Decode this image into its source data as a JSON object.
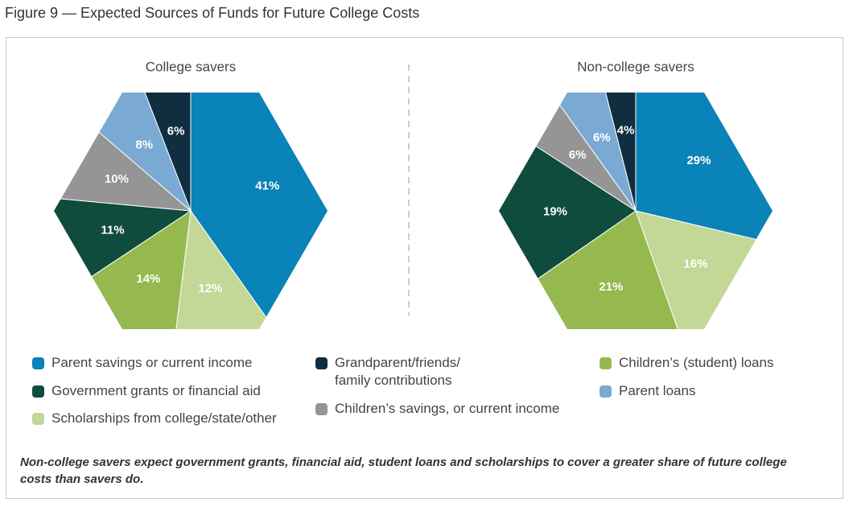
{
  "figure_title": "Figure 9 — Expected Sources of Funds for Future College Costs",
  "caption": "Non-college savers expect government grants, financial aid, student loans and scholarships to cover a greater share of future college costs than savers do.",
  "chart_data": [
    {
      "type": "pie",
      "title": "College savers",
      "categories": [
        "Parent savings or current income",
        "Scholarships from college/state/other",
        "Children’s (student) loans",
        "Government grants or financial aid",
        "Children’s savings, or current income",
        "Parent loans",
        "Grandparent/friends/ family contributions"
      ],
      "values": [
        41,
        12,
        14,
        11,
        10,
        8,
        6
      ],
      "value_labels": [
        "41%",
        "12%",
        "14%",
        "11%",
        "10%",
        "8%",
        "6%"
      ],
      "colors": [
        "#0a83b8",
        "#c3d897",
        "#96b94f",
        "#0f4c3e",
        "#959595",
        "#7aaad4",
        "#112d40"
      ]
    },
    {
      "type": "pie",
      "title": "Non-college savers",
      "categories": [
        "Parent savings or current income",
        "Scholarships from college/state/other",
        "Children’s (student) loans",
        "Government grants or financial aid",
        "Children’s savings, or current income",
        "Parent loans",
        "Grandparent/friends/ family contributions"
      ],
      "values": [
        29,
        16,
        21,
        19,
        6,
        6,
        4
      ],
      "value_labels": [
        "29%",
        "16%",
        "21%",
        "19%",
        "6%",
        "6%",
        "4%"
      ],
      "colors": [
        "#0a83b8",
        "#c3d897",
        "#96b94f",
        "#0f4c3e",
        "#959595",
        "#7aaad4",
        "#112d40"
      ]
    }
  ]
}
